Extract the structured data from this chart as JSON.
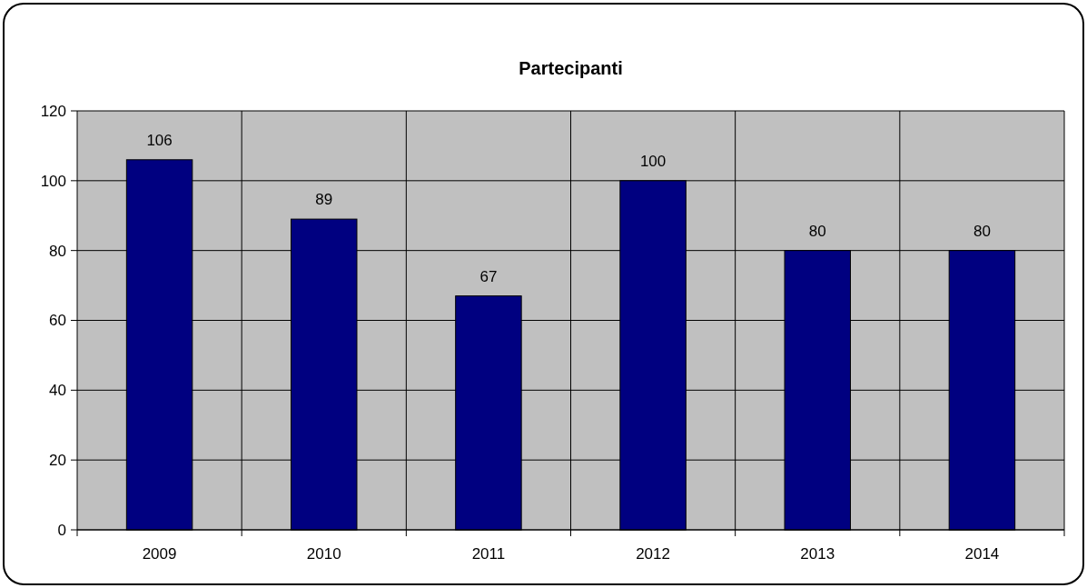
{
  "chart_data": {
    "type": "bar",
    "title": "Partecipanti",
    "categories": [
      "2009",
      "2010",
      "2011",
      "2012",
      "2013",
      "2014"
    ],
    "values": [
      106,
      89,
      67,
      100,
      80,
      80
    ],
    "color": "#000080",
    "ylim": [
      0,
      120
    ],
    "yticks": [
      0,
      20,
      40,
      60,
      80,
      100,
      120
    ],
    "grid": true,
    "data_labels": true
  }
}
